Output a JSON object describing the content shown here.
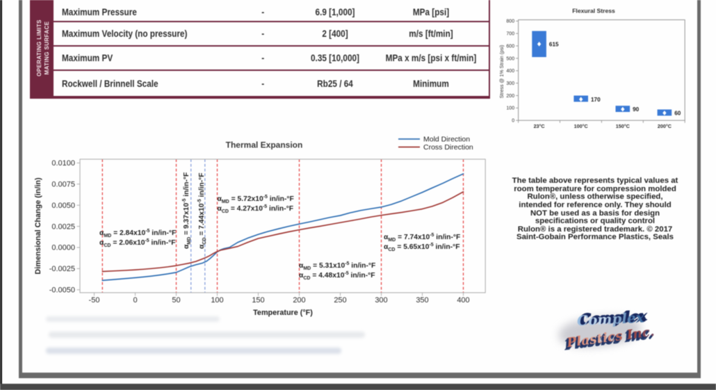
{
  "table": {
    "side_label_line1": "OPERATING LIMITS",
    "side_label_line2": "MATING SURFACE",
    "accent_color": "#71263f",
    "rows": [
      {
        "property": "Maximum Pressure",
        "dash": "-",
        "value": "6.9 [1,000]",
        "unit": "MPa [psi]"
      },
      {
        "property": "Maximum Velocity (no pressure)",
        "dash": "-",
        "value": "2 [400]",
        "unit": "m/s [ft/min]"
      },
      {
        "property": "Maximum PV",
        "dash": "-",
        "value": "0.35 [10,000]",
        "unit": "MPa x m/s [psi x ft/min]"
      },
      {
        "property": "Rockwell / Brinnell Scale",
        "dash": "-",
        "value": "Rb25 / 64",
        "unit": "Minimum"
      }
    ]
  },
  "chart_data": [
    {
      "type": "bar",
      "subtype": "floating-range-boxes",
      "title": "Flexural Stress",
      "ylabel": "Stress @ 1% Strain (psi)",
      "ylim": [
        0,
        800
      ],
      "ytick_step": 100,
      "grid": false,
      "box_color": "#3a7ad6",
      "categories": [
        "23°C",
        "100°C",
        "150°C",
        "200°C"
      ],
      "boxes": [
        {
          "low": 510,
          "high": 720,
          "marker": 615,
          "label": "615"
        },
        {
          "low": 150,
          "high": 200,
          "marker": 170,
          "label": "170"
        },
        {
          "low": 68,
          "high": 118,
          "marker": 90,
          "label": "90"
        },
        {
          "low": 38,
          "high": 88,
          "marker": 60,
          "label": "60"
        }
      ]
    },
    {
      "type": "line",
      "title": "Thermal Expansion",
      "xlabel": "Temperature (°F)",
      "ylabel": "Dimensional Change (in/in)",
      "xlim": [
        -67,
        427
      ],
      "ylim": [
        -0.00535,
        0.01045
      ],
      "xticks": [
        -50,
        0,
        50,
        100,
        150,
        200,
        250,
        300,
        350,
        400
      ],
      "yticks": [
        -0.005,
        -0.0025,
        0.0,
        0.0025,
        0.005,
        0.0075,
        0.01
      ],
      "grid": false,
      "legend_position": "top-right",
      "vlines_red": [
        -40,
        50,
        100,
        200,
        300,
        400
      ],
      "vlines_blue": [
        68,
        85
      ],
      "series": [
        {
          "name": "Mold Direction",
          "color": "#3070b4",
          "points": [
            [
              -40,
              -0.0039
            ],
            [
              -25,
              -0.00378
            ],
            [
              -10,
              -0.00366
            ],
            [
              0,
              -0.00358
            ],
            [
              10,
              -0.00349
            ],
            [
              20,
              -0.00338
            ],
            [
              30,
              -0.00326
            ],
            [
              40,
              -0.00312
            ],
            [
              50,
              -0.00295
            ],
            [
              58,
              -0.00262
            ],
            [
              66,
              -0.00228
            ],
            [
              74,
              -0.00204
            ],
            [
              82,
              -0.00184
            ],
            [
              87,
              -0.00162
            ],
            [
              91,
              -0.00132
            ],
            [
              95,
              -0.00098
            ],
            [
              100,
              -0.00052
            ],
            [
              104,
              -0.00028
            ],
            [
              108,
              -0.00014
            ],
            [
              115,
              2e-05
            ],
            [
              125,
              0.0006
            ],
            [
              137,
              0.0011
            ],
            [
              150,
              0.00155
            ],
            [
              162,
              0.0019
            ],
            [
              175,
              0.00222
            ],
            [
              187,
              0.0025
            ],
            [
              200,
              0.00278
            ],
            [
              212,
              0.00302
            ],
            [
              225,
              0.0033
            ],
            [
              237,
              0.00355
            ],
            [
              250,
              0.00378
            ],
            [
              262,
              0.0041
            ],
            [
              275,
              0.00438
            ],
            [
              287,
              0.00458
            ],
            [
              300,
              0.00478
            ],
            [
              312,
              0.00508
            ],
            [
              325,
              0.00552
            ],
            [
              337,
              0.006
            ],
            [
              350,
              0.00652
            ],
            [
              362,
              0.00705
            ],
            [
              375,
              0.0076
            ],
            [
              387,
              0.00815
            ],
            [
              400,
              0.00872
            ]
          ]
        },
        {
          "name": "Cross Direction",
          "color": "#a23a36",
          "points": [
            [
              -40,
              -0.00284
            ],
            [
              -25,
              -0.00277
            ],
            [
              -10,
              -0.0027
            ],
            [
              0,
              -0.00264
            ],
            [
              10,
              -0.00257
            ],
            [
              20,
              -0.00249
            ],
            [
              30,
              -0.0024
            ],
            [
              40,
              -0.00229
            ],
            [
              50,
              -0.00215
            ],
            [
              58,
              -0.002
            ],
            [
              66,
              -0.00185
            ],
            [
              74,
              -0.00165
            ],
            [
              82,
              -0.00135
            ],
            [
              87,
              -0.00115
            ],
            [
              91,
              -0.00095
            ],
            [
              95,
              -0.00072
            ],
            [
              100,
              -0.00048
            ],
            [
              104,
              -0.00032
            ],
            [
              108,
              -0.00024
            ],
            [
              115,
              -0.0001
            ],
            [
              125,
              0.00012
            ],
            [
              137,
              0.0006
            ],
            [
              150,
              0.00106
            ],
            [
              162,
              0.00132
            ],
            [
              175,
              0.0016
            ],
            [
              187,
              0.00185
            ],
            [
              200,
              0.00209
            ],
            [
              212,
              0.0023
            ],
            [
              225,
              0.00251
            ],
            [
              237,
              0.00272
            ],
            [
              250,
              0.00294
            ],
            [
              262,
              0.00315
            ],
            [
              275,
              0.00338
            ],
            [
              287,
              0.0036
            ],
            [
              300,
              0.00381
            ],
            [
              312,
              0.00398
            ],
            [
              325,
              0.00415
            ],
            [
              337,
              0.00434
            ],
            [
              350,
              0.00456
            ],
            [
              362,
              0.00487
            ],
            [
              375,
              0.00532
            ],
            [
              387,
              0.0059
            ],
            [
              400,
              0.00659
            ]
          ]
        }
      ],
      "annotations": [
        {
          "lines": [
            "αMD = 2.84x10-5 in/in-°F",
            "αCD = 2.06x10-5 in/in-°F"
          ],
          "rotated": false
        },
        {
          "lines": [
            "αMD = 9.37x10-5 in/in-°F",
            "αCD = 7.44x10-5 in/in-°F"
          ],
          "rotated": true
        },
        {
          "lines": [
            "αMD = 5.72x10-5 in/in-°F",
            "αCD = 4.27x10-5 in/in-°F"
          ],
          "rotated": false
        },
        {
          "lines": [
            "αMD = 5.31x10-5 in/in-°F",
            "αCD = 4.48x10-5 in/in-°F"
          ],
          "rotated": false
        },
        {
          "lines": [
            "αMD = 7.74x10-5 in/in-°F",
            "αCD = 5.65x10-5 in/in-°F"
          ],
          "rotated": false
        }
      ]
    }
  ],
  "note": {
    "lines": [
      "The table above represents typical values at",
      "room temperature for compression molded",
      "Rulon®, unless otherwise specified,",
      "intended for reference only. They should",
      "NOT be used as a basis for design",
      "specifications or quality control",
      "Rulon® is a registered trademark. © 2017",
      "Saint-Gobain Performance Plastics, Seals"
    ]
  },
  "logo": {
    "line1": "Complex",
    "line2": "Plastics Inc."
  }
}
